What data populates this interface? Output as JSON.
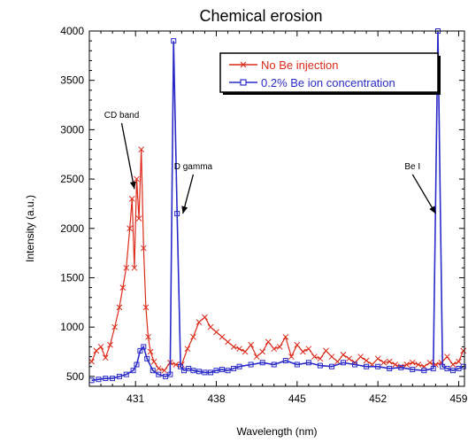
{
  "chart_data": {
    "type": "line",
    "title": "Chemical erosion",
    "xlabel": "Wavelength (nm)",
    "ylabel": "Intensity (a.u.)",
    "xlim": [
      427,
      459.5
    ],
    "ylim": [
      400,
      4000
    ],
    "xticks": [
      431,
      438,
      445,
      452,
      459
    ],
    "yticks": [
      500,
      1000,
      1500,
      2000,
      2500,
      3000,
      3500,
      4000
    ],
    "xtick_labels": [
      "431",
      "438",
      "445",
      "452",
      "459"
    ],
    "ytick_labels": [
      "500",
      "1000",
      "1500",
      "2000",
      "2500",
      "3000",
      "3500",
      "4000"
    ],
    "legend": {
      "placement": "top-right",
      "entries": [
        "No Be injection",
        "0.2% Be ion concentration"
      ]
    },
    "series": [
      {
        "name": "No Be injection",
        "color": "#dd2a1a",
        "marker": "x",
        "x": [
          427.2,
          427.6,
          428.0,
          428.4,
          428.8,
          429.2,
          429.6,
          429.9,
          430.2,
          430.5,
          430.7,
          430.9,
          431.1,
          431.3,
          431.5,
          431.7,
          431.9,
          432.1,
          432.3,
          432.6,
          433.0,
          433.5,
          434.0,
          434.5,
          435.0,
          435.5,
          436.0,
          436.5,
          437.0,
          437.5,
          438.0,
          438.5,
          439.0,
          439.5,
          440.0,
          440.5,
          441.0,
          441.5,
          442.0,
          442.5,
          443.0,
          443.5,
          444.0,
          444.5,
          445.0,
          445.5,
          446.0,
          446.5,
          447.0,
          447.5,
          448.0,
          448.5,
          449.0,
          449.5,
          450.0,
          450.5,
          451.0,
          451.5,
          452.0,
          452.5,
          453.0,
          453.5,
          454.0,
          454.5,
          455.0,
          455.5,
          456.0,
          456.5,
          457.0,
          457.5,
          458.0,
          458.5,
          459.0,
          459.4
        ],
        "values": [
          650,
          760,
          800,
          690,
          820,
          1000,
          1200,
          1400,
          1600,
          2000,
          2300,
          1600,
          2500,
          2100,
          2800,
          1800,
          1200,
          900,
          750,
          650,
          580,
          560,
          640,
          620,
          620,
          780,
          900,
          1050,
          1100,
          1000,
          950,
          900,
          850,
          800,
          780,
          750,
          820,
          700,
          750,
          850,
          780,
          800,
          900,
          700,
          820,
          750,
          780,
          700,
          680,
          760,
          700,
          650,
          720,
          680,
          640,
          700,
          660,
          620,
          680,
          640,
          650,
          620,
          600,
          620,
          640,
          620,
          600,
          640,
          620,
          640,
          700,
          620,
          650,
          760
        ]
      },
      {
        "name": "0.2% Be ion concentration",
        "color": "#2a2ac8",
        "marker": "square",
        "x": [
          427.2,
          427.8,
          428.4,
          429.0,
          429.6,
          430.2,
          430.8,
          431.1,
          431.4,
          431.7,
          432.0,
          432.5,
          433.0,
          433.6,
          434.0,
          434.3,
          434.6,
          434.9,
          435.2,
          435.6,
          436.0,
          436.5,
          437.0,
          437.5,
          438.0,
          438.5,
          439.0,
          439.5,
          440.0,
          441.0,
          442.0,
          443.0,
          444.0,
          445.0,
          446.0,
          447.0,
          448.0,
          449.0,
          450.0,
          451.0,
          452.0,
          453.0,
          454.0,
          455.0,
          456.0,
          456.8,
          457.2,
          457.6,
          458.0,
          458.5,
          459.0,
          459.4
        ],
        "values": [
          460,
          470,
          480,
          480,
          500,
          520,
          560,
          620,
          760,
          800,
          680,
          560,
          520,
          500,
          520,
          3900,
          2150,
          600,
          560,
          580,
          560,
          550,
          540,
          540,
          560,
          570,
          560,
          580,
          600,
          620,
          640,
          620,
          660,
          620,
          640,
          610,
          600,
          640,
          620,
          600,
          600,
          580,
          590,
          570,
          560,
          580,
          4000,
          600,
          580,
          560,
          580,
          600
        ]
      }
    ],
    "annotations": [
      {
        "text": "CD band",
        "x": 429.8,
        "y": 3120,
        "arrow_x": 430.9,
        "arrow_y": 2400
      },
      {
        "text": "D gamma",
        "x": 436.0,
        "y": 2600,
        "arrow_x": 435.1,
        "arrow_y": 2150
      },
      {
        "text": "Be I",
        "x": 455.0,
        "y": 2600,
        "arrow_x": 457.0,
        "arrow_y": 2150
      }
    ]
  }
}
